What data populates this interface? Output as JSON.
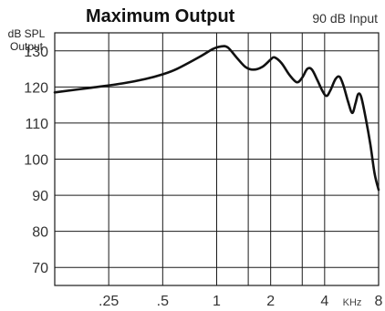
{
  "chart_data": {
    "type": "line",
    "title": "Maximum Output",
    "subtitle": "90 dB Input",
    "ylabel": [
      "dB SPL",
      "Output"
    ],
    "xunit": "KHz",
    "x_scale": "log",
    "xlim": [
      0.125,
      8
    ],
    "ylim": [
      65,
      135
    ],
    "grid": true,
    "x_ticks": [
      {
        "value": 0.25,
        "label": ".25"
      },
      {
        "value": 0.5,
        "label": ".5"
      },
      {
        "value": 1,
        "label": "1"
      },
      {
        "value": 2,
        "label": "2"
      },
      {
        "value": 4,
        "label": "4"
      },
      {
        "value": 8,
        "label": "8"
      }
    ],
    "x_minor_gridlines": [
      1.5,
      3
    ],
    "y_ticks": [
      130,
      120,
      110,
      100,
      90,
      80,
      70
    ],
    "series": [
      {
        "points": [
          [
            0.125,
            118.5
          ],
          [
            0.2,
            119.8
          ],
          [
            0.3,
            121
          ],
          [
            0.4,
            122.2
          ],
          [
            0.5,
            123.5
          ],
          [
            0.6,
            125
          ],
          [
            0.8,
            128.3
          ],
          [
            0.95,
            130.5
          ],
          [
            1.05,
            131.2
          ],
          [
            1.15,
            131
          ],
          [
            1.3,
            128
          ],
          [
            1.45,
            125.5
          ],
          [
            1.6,
            124.8
          ],
          [
            1.8,
            125.6
          ],
          [
            2.0,
            127.6
          ],
          [
            2.1,
            128.2
          ],
          [
            2.3,
            126.6
          ],
          [
            2.55,
            123.3
          ],
          [
            2.8,
            121.3
          ],
          [
            3.0,
            122.6
          ],
          [
            3.2,
            125
          ],
          [
            3.4,
            124.8
          ],
          [
            3.65,
            121.8
          ],
          [
            3.9,
            118.8
          ],
          [
            4.1,
            117.5
          ],
          [
            4.3,
            119
          ],
          [
            4.6,
            122.2
          ],
          [
            4.85,
            122.8
          ],
          [
            5.1,
            120.3
          ],
          [
            5.4,
            116
          ],
          [
            5.7,
            112.8
          ],
          [
            5.95,
            115.5
          ],
          [
            6.15,
            118
          ],
          [
            6.4,
            117.2
          ],
          [
            6.8,
            111
          ],
          [
            7.2,
            104
          ],
          [
            7.6,
            96
          ],
          [
            8.0,
            91.5
          ]
        ]
      }
    ]
  }
}
